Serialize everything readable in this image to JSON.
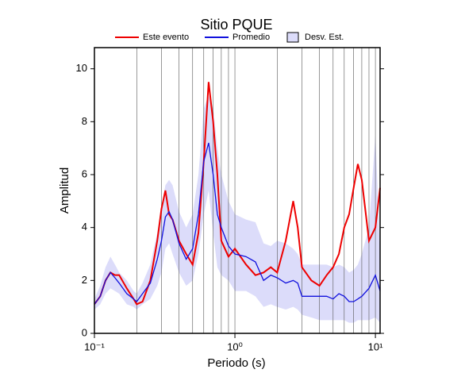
{
  "chart_data": {
    "type": "line",
    "title": "Sitio PQUE",
    "xlabel": "Periodo (s)",
    "ylabel": "Amplitud",
    "xscale": "log",
    "grid": true,
    "xlim": [
      0.1,
      10.8
    ],
    "ylim": [
      0,
      10.8
    ],
    "xticks": [
      {
        "value": 0.1,
        "label": "10⁻¹"
      },
      {
        "value": 1,
        "label": "10⁰"
      },
      {
        "value": 10,
        "label": "10¹"
      }
    ],
    "xgrid": [
      0.2,
      0.3,
      0.4,
      0.5,
      0.6,
      0.7,
      0.8,
      0.9,
      1,
      2,
      3,
      4,
      5,
      6,
      7,
      8,
      9,
      10
    ],
    "yticks": [
      0,
      2,
      4,
      6,
      8,
      10
    ],
    "x": [
      0.1,
      0.11,
      0.12,
      0.13,
      0.14,
      0.15,
      0.17,
      0.19,
      0.2,
      0.22,
      0.25,
      0.28,
      0.3,
      0.32,
      0.34,
      0.36,
      0.4,
      0.45,
      0.5,
      0.55,
      0.6,
      0.65,
      0.7,
      0.75,
      0.8,
      0.9,
      1.0,
      1.2,
      1.4,
      1.6,
      1.8,
      2.0,
      2.3,
      2.6,
      2.8,
      3.0,
      3.5,
      4,
      4.5,
      5,
      5.5,
      6,
      6.5,
      7,
      7.5,
      8,
      9,
      10,
      10.8
    ],
    "series": [
      {
        "name": "Este evento",
        "color": "#ee0000",
        "values": [
          1.1,
          1.4,
          2.0,
          2.3,
          2.2,
          2.2,
          1.7,
          1.3,
          1.1,
          1.2,
          2.0,
          3.5,
          4.7,
          5.4,
          4.5,
          4.3,
          3.5,
          3.0,
          2.6,
          3.8,
          6.5,
          9.5,
          8.0,
          6.0,
          3.5,
          2.9,
          3.2,
          2.6,
          2.2,
          2.3,
          2.5,
          2.3,
          3.5,
          5.0,
          4.0,
          2.5,
          2.0,
          1.8,
          2.2,
          2.5,
          3.0,
          4.0,
          4.5,
          5.5,
          6.4,
          5.8,
          3.5,
          4.0,
          5.5
        ]
      },
      {
        "name": "Promedio",
        "color": "#1111dd",
        "values": [
          1.1,
          1.4,
          2.0,
          2.3,
          2.1,
          1.9,
          1.5,
          1.3,
          1.2,
          1.5,
          1.9,
          2.8,
          3.5,
          4.4,
          4.6,
          4.3,
          3.4,
          2.8,
          3.2,
          4.5,
          6.5,
          7.2,
          6.0,
          4.5,
          4.0,
          3.3,
          3.0,
          2.9,
          2.7,
          2.0,
          2.2,
          2.1,
          1.9,
          2.0,
          1.9,
          1.4,
          1.4,
          1.4,
          1.4,
          1.3,
          1.5,
          1.4,
          1.2,
          1.2,
          1.3,
          1.4,
          1.7,
          2.2,
          1.6
        ]
      },
      {
        "name": "Desv. Est.",
        "color": "#dcdcfa",
        "upper": [
          1.3,
          1.8,
          2.5,
          2.9,
          2.6,
          2.3,
          2.0,
          1.6,
          1.5,
          1.9,
          2.6,
          3.8,
          4.8,
          5.6,
          5.8,
          5.6,
          4.6,
          4.0,
          4.5,
          6.0,
          8.5,
          9.0,
          8.5,
          7.0,
          6.0,
          5.0,
          4.5,
          4.3,
          4.2,
          3.4,
          3.3,
          3.5,
          3.4,
          3.2,
          3.0,
          2.6,
          2.6,
          2.6,
          2.6,
          2.5,
          2.6,
          2.5,
          2.3,
          2.4,
          2.6,
          3.0,
          4.0,
          7.5,
          3.0
        ],
        "lower": [
          0.9,
          1.1,
          1.5,
          1.7,
          1.6,
          1.5,
          1.1,
          1.0,
          0.9,
          1.1,
          1.3,
          1.8,
          2.3,
          3.2,
          3.4,
          3.0,
          2.3,
          1.8,
          2.0,
          3.0,
          4.5,
          5.4,
          3.8,
          2.5,
          2.2,
          2.0,
          1.6,
          1.6,
          1.4,
          1.0,
          1.1,
          1.0,
          0.9,
          1.0,
          0.9,
          0.7,
          0.6,
          0.5,
          0.5,
          0.5,
          0.5,
          0.5,
          0.4,
          0.4,
          0.5,
          0.5,
          0.5,
          0.6,
          0.4
        ]
      }
    ]
  }
}
